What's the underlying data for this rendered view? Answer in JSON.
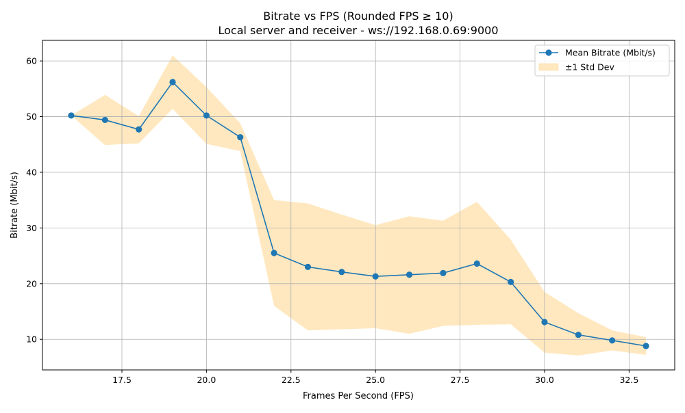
{
  "chart_data": {
    "type": "line",
    "title": "Bitrate vs FPS (Rounded FPS ≥ 10)",
    "subtitle": "Local server and receiver - ws://192.168.0.69:9000",
    "xlabel": "Frames Per Second (FPS)",
    "ylabel": "Bitrate (Mbit/s)",
    "xlim": [
      15.15,
      33.85
    ],
    "ylim": [
      4.5,
      63.7
    ],
    "xticks": [
      17.5,
      20.0,
      22.5,
      25.0,
      27.5,
      30.0,
      32.5
    ],
    "xtick_labels": [
      "17.5",
      "20.0",
      "22.5",
      "25.0",
      "27.5",
      "30.0",
      "32.5"
    ],
    "yticks": [
      10,
      20,
      30,
      40,
      50,
      60
    ],
    "ytick_labels": [
      "10",
      "20",
      "30",
      "40",
      "50",
      "60"
    ],
    "grid": true,
    "legend_position": "top-right",
    "series": [
      {
        "name": "Mean Bitrate (Mbit/s)",
        "color": "#1f77b4",
        "marker": "circle",
        "x": [
          16,
          17,
          18,
          19,
          20,
          21,
          22,
          23,
          24,
          25,
          26,
          27,
          28,
          29,
          30,
          31,
          32,
          33
        ],
        "y": [
          50.2,
          49.4,
          47.7,
          56.2,
          50.2,
          46.3,
          25.5,
          23.0,
          22.1,
          21.3,
          21.6,
          21.9,
          23.6,
          20.3,
          13.1,
          10.8,
          9.8,
          8.8
        ]
      }
    ],
    "band": {
      "name": "±1 Std Dev",
      "color": "#ffe8bf",
      "x": [
        16,
        17,
        18,
        19,
        20,
        21,
        22,
        23,
        24,
        25,
        26,
        27,
        28,
        29,
        30,
        31,
        32,
        33
      ],
      "upper": [
        50.2,
        53.9,
        50.1,
        61.0,
        55.3,
        48.8,
        35.0,
        34.4,
        32.4,
        30.5,
        32.1,
        31.3,
        34.7,
        27.9,
        18.5,
        14.7,
        11.6,
        10.4
      ],
      "lower": [
        50.2,
        44.9,
        45.2,
        51.4,
        45.1,
        43.8,
        16.0,
        11.6,
        11.8,
        12.0,
        11.0,
        12.4,
        12.6,
        12.7,
        7.6,
        7.1,
        8.0,
        7.2
      ]
    }
  }
}
